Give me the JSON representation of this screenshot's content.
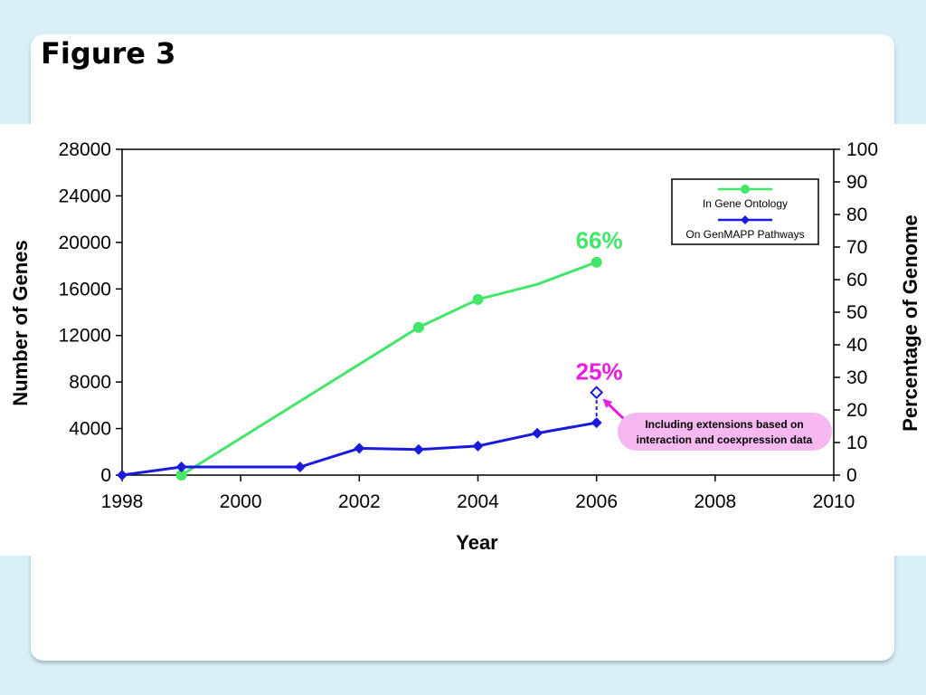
{
  "slide": {
    "title": "Figure 3"
  },
  "colors": {
    "go": "#44e66a",
    "genmapp": "#1a1adb",
    "annotation": "#e81ee0",
    "note_fill": "#f5b8f0"
  },
  "chart_data": {
    "type": "line",
    "xlabel": "Year",
    "ylabel": "Number of Genes",
    "y2label": "Percentage of Genome",
    "xlim": [
      1998,
      2010
    ],
    "ylim": [
      0,
      28000
    ],
    "y2lim": [
      0,
      100
    ],
    "xticks": [
      1998,
      2000,
      2002,
      2004,
      2006,
      2008,
      2010
    ],
    "yticks": [
      0,
      4000,
      8000,
      12000,
      16000,
      20000,
      24000,
      28000
    ],
    "y2ticks": [
      0,
      10,
      20,
      30,
      40,
      50,
      60,
      70,
      80,
      90,
      100
    ],
    "legend_position": "top-right",
    "series": [
      {
        "name": "In Gene Ontology",
        "color": "#44e66a",
        "marker": "circle",
        "points": [
          {
            "x": 1999,
            "y": 0,
            "marker": true
          },
          {
            "x": 2003,
            "y": 12700,
            "marker": true
          },
          {
            "x": 2004,
            "y": 15100,
            "marker": true
          },
          {
            "x": 2005,
            "y": 16400,
            "marker": false
          },
          {
            "x": 2006,
            "y": 18300,
            "marker": true
          }
        ]
      },
      {
        "name": "On GenMAPP Pathways",
        "color": "#1a1adb",
        "marker": "diamond",
        "points": [
          {
            "x": 1998,
            "y": 0
          },
          {
            "x": 1999,
            "y": 700
          },
          {
            "x": 2001,
            "y": 700
          },
          {
            "x": 2002,
            "y": 2300
          },
          {
            "x": 2003,
            "y": 2200
          },
          {
            "x": 2004,
            "y": 2500
          },
          {
            "x": 2005,
            "y": 3600
          },
          {
            "x": 2006,
            "y": 4500
          }
        ]
      }
    ],
    "extension_point": {
      "x": 2006,
      "y": 7100,
      "from_y": 4500
    },
    "annotations": {
      "go_percent": {
        "text": "66%",
        "x": 2006,
        "y": 19500
      },
      "genmapp_percent": {
        "text": "25%",
        "x": 2006,
        "y": 8200
      },
      "note": {
        "text_line1": "Including extensions based on",
        "text_line2": "interaction and coexpression data"
      }
    }
  }
}
